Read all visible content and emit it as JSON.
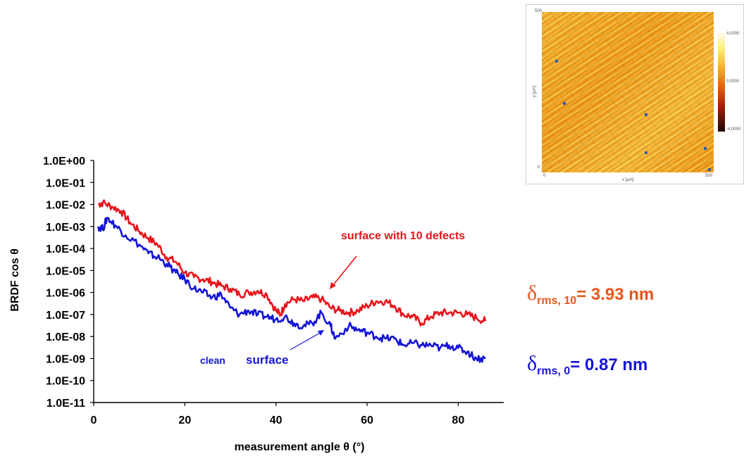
{
  "chart_data": {
    "type": "line",
    "xlabel": "measurement angle θ (°)",
    "ylabel": "BRDF cos θ",
    "xlim": [
      0,
      90
    ],
    "ylim": [
      1e-11,
      1
    ],
    "yscale": "log",
    "x_ticks": [
      0,
      20,
      40,
      60,
      80
    ],
    "y_ticks": [
      "1.0E+00",
      "1.0E-01",
      "1.0E-02",
      "1.0E-03",
      "1.0E-04",
      "1.0E-05",
      "1.0E-06",
      "1.0E-07",
      "1.0E-08",
      "1.0E-09",
      "1.0E-10",
      "1.0E-11"
    ],
    "grid": false,
    "series": [
      {
        "name": "surface with 10 defects",
        "color": "#e8141c",
        "x": [
          1,
          2,
          4,
          6,
          8,
          10,
          12,
          14,
          16,
          18,
          20,
          22,
          24,
          26,
          28,
          30,
          32,
          34,
          36,
          38,
          40,
          41,
          42,
          44,
          46,
          48,
          50,
          52,
          54,
          56,
          58,
          60,
          62,
          64,
          66,
          68,
          70,
          72,
          74,
          76,
          78,
          80,
          82,
          84,
          86
        ],
        "values": [
          0.01,
          0.012,
          0.008,
          0.005,
          0.0015,
          0.0006,
          0.0003,
          0.00015,
          4e-05,
          2.5e-05,
          8e-06,
          5e-06,
          4e-06,
          3e-06,
          2e-06,
          1.5e-06,
          8e-07,
          1e-06,
          1.2e-06,
          8e-07,
          1.5e-07,
          1e-07,
          3e-07,
          5e-07,
          4e-07,
          6e-07,
          5e-07,
          2e-07,
          1.5e-07,
          1.2e-07,
          1.5e-07,
          2.5e-07,
          4e-07,
          4e-07,
          2.5e-07,
          1e-07,
          8e-08,
          4e-08,
          8e-08,
          1.2e-07,
          1.2e-07,
          1.2e-07,
          1e-07,
          7e-08,
          5e-08
        ]
      },
      {
        "name": "clean surface",
        "color": "#1414d8",
        "x": [
          1,
          2,
          3,
          5,
          7,
          10,
          12,
          14,
          16,
          18,
          20,
          22,
          24,
          26,
          28,
          30,
          32,
          34,
          36,
          38,
          40,
          42,
          44,
          46,
          48,
          50,
          52,
          53,
          56,
          58,
          60,
          62,
          64,
          66,
          68,
          70,
          72,
          74,
          76,
          78,
          80,
          82,
          84,
          86
        ],
        "values": [
          0.001,
          0.0008,
          0.0025,
          0.001,
          0.0004,
          0.00015,
          6e-05,
          4e-05,
          2e-05,
          8e-06,
          4e-06,
          1.5e-06,
          1e-06,
          6e-07,
          8e-07,
          2e-07,
          1e-07,
          1.5e-07,
          1e-07,
          8e-08,
          6e-08,
          8e-08,
          4e-08,
          3e-08,
          4e-08,
          1.2e-07,
          3e-08,
          8e-09,
          3e-08,
          2e-08,
          1.5e-08,
          1e-08,
          8e-09,
          8e-09,
          4e-09,
          5e-09,
          4e-09,
          4e-09,
          3e-09,
          4e-09,
          3e-09,
          2e-09,
          1e-09,
          1e-09
        ]
      }
    ],
    "annotations": [
      {
        "text": "surface with 10 defects",
        "color": "#e8141c"
      },
      {
        "text_1": "clean",
        "text_2": "surface",
        "color": "#1414d8"
      }
    ]
  },
  "rms": {
    "defects": {
      "delta": "δ",
      "sub": "rms, 10",
      "value": "= 3.93 nm",
      "color": "#e8561c"
    },
    "clean": {
      "delta": "δ",
      "sub": "rms, 0",
      "value": "= 0.87 nm",
      "color": "#1414d8"
    }
  },
  "afm": {
    "y_top": "500",
    "y_bottom": "0",
    "x_left": "0",
    "x_right": "500",
    "x_label": "x [µm]",
    "y_label": "y [µm]",
    "scale_labels": [
      "4,0000",
      "0,0000",
      "-4,0000"
    ]
  }
}
